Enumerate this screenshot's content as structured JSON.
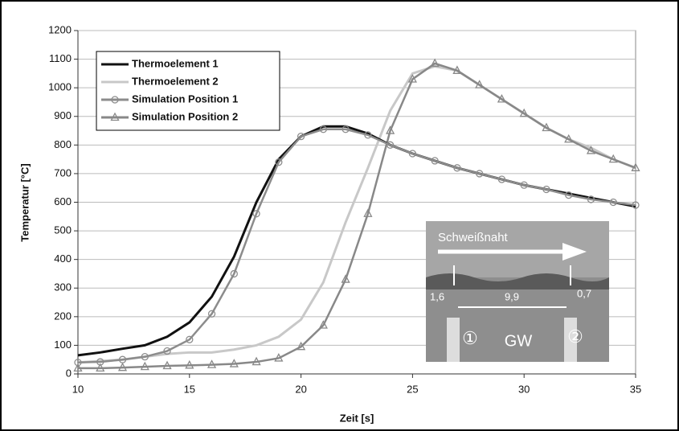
{
  "chart_data": {
    "type": "line",
    "x_label": "Zeit [s]",
    "y_label": "Temperatur [°C]",
    "x": [
      10,
      11,
      12,
      13,
      14,
      15,
      16,
      17,
      18,
      19,
      20,
      21,
      22,
      23,
      24,
      25,
      26,
      27,
      28,
      29,
      30,
      31,
      32,
      33,
      34,
      35
    ],
    "series": [
      {
        "name": "Thermoelement 1",
        "color": "#111111",
        "marker": null,
        "values": [
          65,
          75,
          88,
          100,
          130,
          180,
          270,
          410,
          600,
          750,
          830,
          865,
          865,
          840,
          800,
          770,
          745,
          720,
          700,
          680,
          660,
          645,
          630,
          615,
          600,
          585
        ]
      },
      {
        "name": "Thermoelement 2",
        "color": "#c8c8c8",
        "marker": null,
        "values": [
          40,
          45,
          50,
          60,
          70,
          75,
          75,
          85,
          100,
          130,
          190,
          320,
          530,
          720,
          920,
          1050,
          1075,
          1060,
          1010,
          960,
          910,
          860,
          820,
          790,
          750,
          720
        ]
      },
      {
        "name": "Simulation Position 1",
        "color": "#8c8c8c",
        "marker": "circle",
        "values": [
          40,
          42,
          50,
          60,
          80,
          120,
          210,
          350,
          560,
          740,
          830,
          855,
          855,
          835,
          800,
          770,
          745,
          720,
          700,
          680,
          660,
          645,
          625,
          610,
          600,
          590
        ]
      },
      {
        "name": "Simulation Position 2",
        "color": "#888888",
        "marker": "triangle",
        "values": [
          20,
          20,
          22,
          25,
          28,
          30,
          32,
          35,
          42,
          55,
          95,
          170,
          330,
          560,
          850,
          1030,
          1085,
          1060,
          1010,
          960,
          910,
          860,
          820,
          780,
          750,
          720
        ]
      }
    ],
    "xlim": [
      10,
      35
    ],
    "xticks": [
      10,
      15,
      20,
      25,
      30,
      35
    ],
    "ylim": [
      0,
      1200
    ],
    "yticks": [
      0,
      100,
      200,
      300,
      400,
      500,
      600,
      700,
      800,
      900,
      1000,
      1100,
      1200
    ],
    "grid": true,
    "legend": "upper left",
    "inset": {
      "title": "Schweißnaht",
      "left_depth": "1,6",
      "distance": "9,9",
      "right_depth": "0,7",
      "base": "GW",
      "marker_1": "①",
      "marker_2": "②"
    }
  }
}
